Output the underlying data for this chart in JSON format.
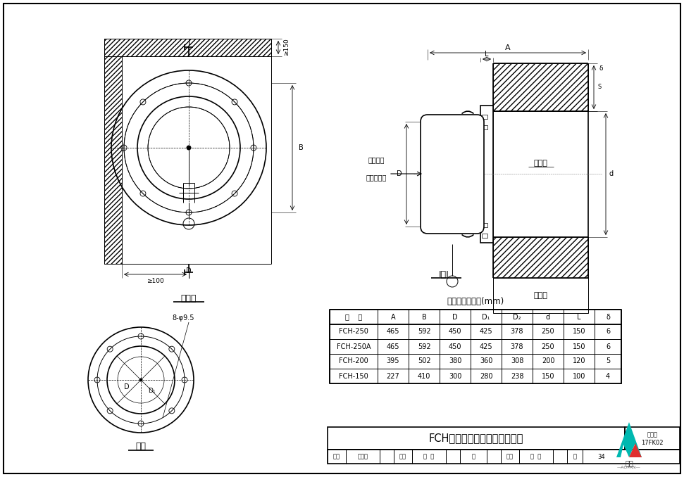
{
  "title": "FCH型防爆超压排气活门安装图",
  "table_title": "主要外形尺寸表(mm)",
  "table_headers": [
    "型    号",
    "A",
    "B",
    "D",
    "D₁",
    "D₂",
    "d",
    "L",
    "δ"
  ],
  "table_data": [
    [
      "FCH-250",
      "465",
      "592",
      "450",
      "425",
      "378",
      "250",
      "150",
      "6"
    ],
    [
      "FCH-250A",
      "465",
      "592",
      "450",
      "425",
      "378",
      "250",
      "150",
      "6"
    ],
    [
      "FCH-200",
      "395",
      "502",
      "380",
      "360",
      "308",
      "200",
      "120",
      "5"
    ],
    [
      "FCH-150",
      "227",
      "410",
      "300",
      "280",
      "238",
      "150",
      "100",
      "4"
    ]
  ],
  "lv_label": "立面图",
  "fa_label": "法兰",
  "II_label": "I－I",
  "arrow_label": "主体内超压排气方向",
  "cjb_label": "冲击波",
  "lkq_label": "临空墙",
  "holes_label": "8-φ9.5",
  "geq150": "≫150",
  "geq100": "≫100",
  "bg": "#ffffff",
  "lc": "#000000"
}
